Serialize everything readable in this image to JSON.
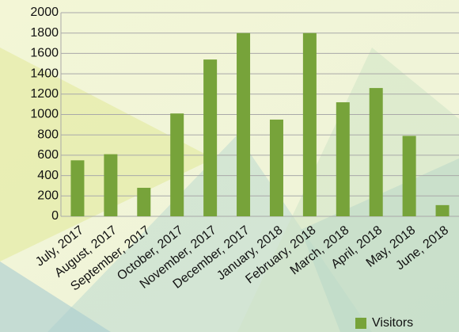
{
  "chart_data": {
    "type": "bar",
    "categories": [
      "July, 2017",
      "August, 2017",
      "September, 2017",
      "October, 2017",
      "November, 2017",
      "December, 2017",
      "January, 2018",
      "February, 2018",
      "March, 2018",
      "April, 2018",
      "May, 2018",
      "June, 2018"
    ],
    "series": [
      {
        "name": "Visitors",
        "color": "#77a33a",
        "values": [
          550,
          610,
          280,
          1010,
          1540,
          1800,
          950,
          1800,
          1120,
          1260,
          790,
          110
        ]
      }
    ],
    "ylim": [
      0,
      2000
    ],
    "yticks": [
      0,
      200,
      400,
      600,
      800,
      1000,
      1200,
      1400,
      1600,
      1800,
      2000
    ],
    "grid": true,
    "legend": "bottom-right"
  }
}
